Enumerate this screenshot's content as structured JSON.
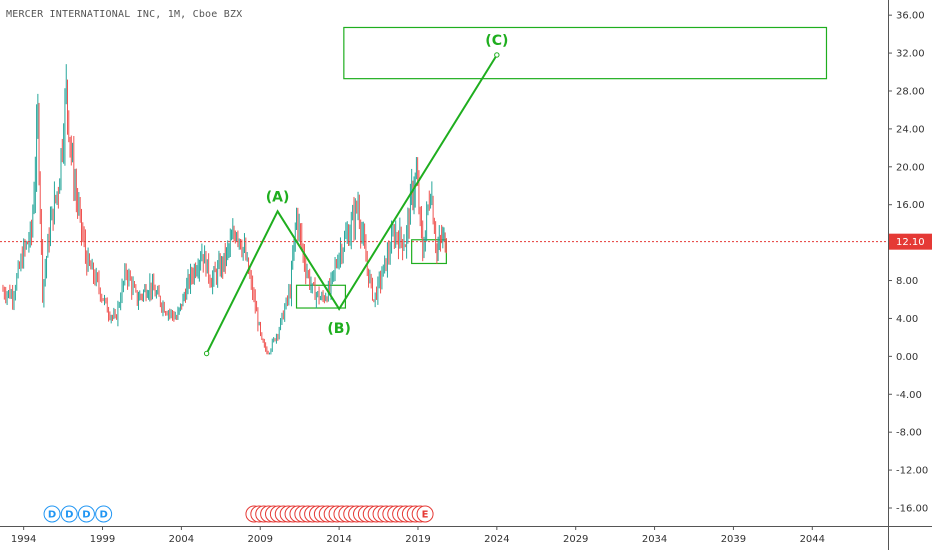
{
  "chart_data": {
    "type": "ohlc",
    "title": "MERCER INTERNATIONAL INC, 1M, Cboe BZX",
    "last_price": 12.1,
    "last_price_label": "12.10",
    "price_line_color": "#e53935",
    "wave_color": "#1fae1f",
    "up_color": "#26a69a",
    "down_color": "#ef5350",
    "xlim": [
      1992.5,
      2048.8
    ],
    "ylim": [
      -17.9,
      37.6
    ],
    "y_ticks": [
      36,
      32,
      28,
      24,
      20,
      16,
      12,
      8,
      4,
      0,
      -4,
      -8,
      -12,
      -16
    ],
    "y_tick_labels": [
      "36.00",
      "32.00",
      "28.00",
      "24.00",
      "20.00",
      "16.00",
      "12.00",
      "8.00",
      "4.00",
      "0.00",
      "-4.00",
      "-8.00",
      "-12.00",
      "-16.00"
    ],
    "x_ticks": [
      1994,
      1999,
      2004,
      2009,
      2014,
      2019,
      2024,
      2029,
      2034,
      2039,
      2044
    ],
    "x_tick_labels": [
      "1994",
      "1999",
      "2004",
      "2009",
      "2014",
      "2019",
      "2024",
      "2029",
      "2034",
      "2039",
      "2044"
    ],
    "price_path": [
      [
        1992.6,
        7
      ],
      [
        1993.3,
        6.5
      ],
      [
        1994.0,
        11
      ],
      [
        1994.5,
        13
      ],
      [
        1994.9,
        25
      ],
      [
        1995.2,
        7
      ],
      [
        1995.7,
        14
      ],
      [
        1996.2,
        18
      ],
      [
        1996.7,
        28
      ],
      [
        1997.1,
        20
      ],
      [
        1997.5,
        15
      ],
      [
        1998.0,
        10
      ],
      [
        1998.6,
        8
      ],
      [
        1999.3,
        5
      ],
      [
        1999.8,
        3.8
      ],
      [
        2000.5,
        9
      ],
      [
        2001.2,
        6
      ],
      [
        2002.0,
        7.5
      ],
      [
        2003.0,
        5
      ],
      [
        2003.7,
        4
      ],
      [
        2004.5,
        8
      ],
      [
        2005.3,
        11
      ],
      [
        2005.9,
        8
      ],
      [
        2006.7,
        10
      ],
      [
        2007.5,
        13.5
      ],
      [
        2008.0,
        11
      ],
      [
        2008.6,
        6
      ],
      [
        2009.1,
        1.5
      ],
      [
        2009.5,
        0.3
      ],
      [
        2010.2,
        3
      ],
      [
        2010.9,
        7
      ],
      [
        2011.3,
        15
      ],
      [
        2011.8,
        10
      ],
      [
        2012.3,
        7
      ],
      [
        2012.9,
        6
      ],
      [
        2013.4,
        7
      ],
      [
        2014.0,
        11
      ],
      [
        2014.6,
        13
      ],
      [
        2015.2,
        16
      ],
      [
        2015.7,
        10
      ],
      [
        2016.2,
        6
      ],
      [
        2016.8,
        9
      ],
      [
        2017.5,
        13
      ],
      [
        2018.2,
        12
      ],
      [
        2018.6,
        17
      ],
      [
        2018.9,
        19
      ],
      [
        2019.3,
        11
      ],
      [
        2019.8,
        18
      ],
      [
        2020.2,
        11
      ],
      [
        2020.5,
        12.5
      ],
      [
        2020.8,
        12.1
      ]
    ],
    "wave_points": [
      {
        "x": 2005.6,
        "y": 0.3
      },
      {
        "x": 2010.1,
        "y": 15.3,
        "label": "(A)"
      },
      {
        "x": 2014.0,
        "y": 5.0,
        "label": "(B)"
      },
      {
        "x": 2024.0,
        "y": 31.8,
        "label": "(C)"
      }
    ],
    "boxes": [
      {
        "name": "target-zone-box",
        "x0": 2014.3,
        "x1": 2044.9,
        "y0": 29.3,
        "y1": 34.7
      },
      {
        "name": "b-zone-box",
        "x0": 2011.3,
        "x1": 2014.4,
        "y0": 5.1,
        "y1": 7.5
      },
      {
        "name": "current-zone-box",
        "x0": 2018.6,
        "x1": 2020.8,
        "y0": 9.8,
        "y1": 12.3
      }
    ],
    "dividend_markers": {
      "label": "D",
      "count": 4,
      "start_year": 1995.8,
      "step_years": 1.09
    },
    "earnings_markers": {
      "label": "E",
      "count": 36,
      "start_year": 2008.6,
      "step_years": 0.31
    }
  }
}
